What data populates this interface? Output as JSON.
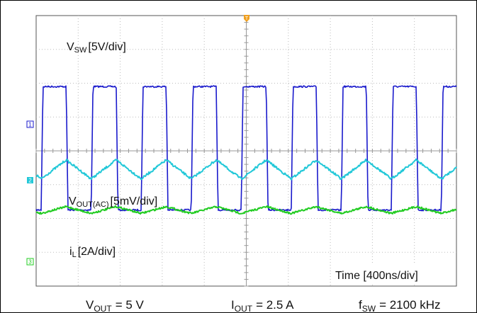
{
  "chart_data": {
    "type": "line",
    "xlabel": "Time [400ns/div]",
    "grid": true,
    "series": [
      {
        "name_main": "V",
        "name_sub": "SW",
        "scale": "[5V/div]",
        "color": "#1a1acc",
        "marker": "1",
        "waveform": "square",
        "high_div": 5.9,
        "low_div": 2.25,
        "period_div": 1.19,
        "duty": 0.5
      },
      {
        "name_main": "V",
        "name_sub": "OUT(AC)",
        "scale": "[5mV/div]",
        "color": "#22c8d8",
        "marker": "2",
        "waveform": "triangle",
        "center_div": -0.55,
        "amplitude_div": 0.28,
        "period_div": 1.19
      },
      {
        "name_main": "i",
        "name_sub": "L",
        "scale": "[2A/div]",
        "color": "#22cc22",
        "marker": "3",
        "waveform": "triangle",
        "center_div": -1.75,
        "amplitude_div": 0.1,
        "period_div": 1.19
      }
    ],
    "trigger_marker": "T",
    "annotations": [
      {
        "main": "V",
        "sub": "OUT",
        "value": "= 5 V"
      },
      {
        "main": "I",
        "sub": "OUT",
        "value": "= 2.5 A"
      },
      {
        "main": "f",
        "sub": "SW",
        "value": "= 2100 kHz"
      }
    ]
  }
}
